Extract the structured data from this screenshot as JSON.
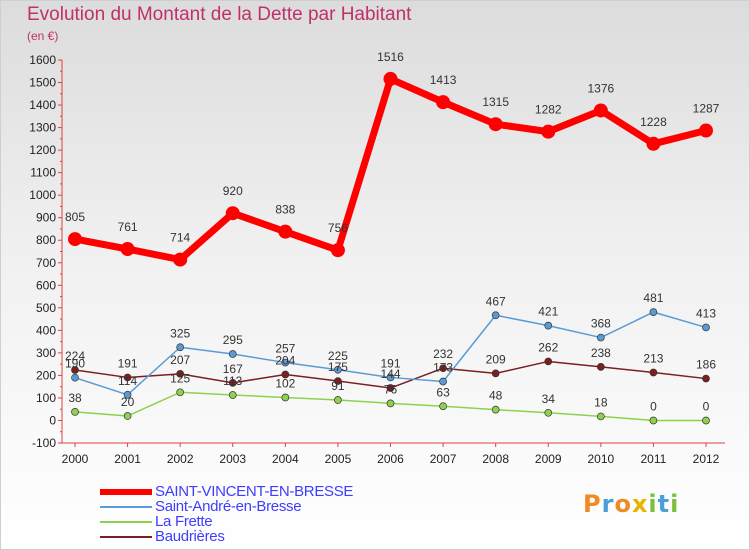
{
  "header": {
    "title": "Evolution du Montant de la Dette par Habitant",
    "subtitle": "(en €)"
  },
  "brand": {
    "logo_text": "Proxiti"
  },
  "chart_data": {
    "type": "line",
    "title": "Evolution du Montant de la Dette par Habitant",
    "subtitle": "(en €)",
    "xlabel": "",
    "ylabel": "",
    "x": [
      2000,
      2001,
      2002,
      2003,
      2004,
      2005,
      2006,
      2007,
      2008,
      2009,
      2010,
      2011,
      2012
    ],
    "ylim": [
      -100,
      1600
    ],
    "yticks": [
      -100,
      0,
      100,
      200,
      300,
      400,
      500,
      600,
      700,
      800,
      900,
      1000,
      1100,
      1200,
      1300,
      1400,
      1500,
      1600
    ],
    "grid": false,
    "legend_position": "bottom-left",
    "series": [
      {
        "name": "SAINT-VINCENT-EN-BRESSE",
        "color": "#ff0000",
        "emphasis": true,
        "values": [
          805,
          761,
          714,
          920,
          838,
          756,
          1516,
          1413,
          1315,
          1282,
          1376,
          1228,
          1287
        ]
      },
      {
        "name": "Saint-André-en-Bresse",
        "color": "#5b9bd5",
        "emphasis": false,
        "values": [
          190,
          114,
          325,
          295,
          257,
          225,
          191,
          173,
          467,
          421,
          368,
          481,
          413
        ]
      },
      {
        "name": "La Frette",
        "color": "#8fd14f",
        "emphasis": false,
        "values": [
          38,
          20,
          125,
          113,
          102,
          91,
          76,
          63,
          48,
          34,
          18,
          0,
          0
        ]
      },
      {
        "name": "Baudrières",
        "color": "#7b1f1f",
        "emphasis": false,
        "values": [
          224,
          191,
          207,
          167,
          204,
          175,
          144,
          232,
          209,
          262,
          238,
          213,
          186
        ]
      }
    ],
    "data_labels": {
      "SAINT-VINCENT-EN-BRESSE": [
        "805",
        "761",
        "714",
        "920",
        "838",
        "756",
        "1516",
        "1413",
        "1315",
        "1282",
        "1376",
        "1228",
        "1287"
      ],
      "Saint-André-en-Bresse": [
        "190",
        "114",
        "325",
        "295",
        "257",
        "225",
        "191",
        "173",
        "467",
        "421",
        "368",
        "481",
        "413"
      ],
      "La Frette": [
        "38",
        "20",
        "125",
        "113",
        "102",
        "91",
        "76",
        "63",
        "48",
        "34",
        "18",
        "0",
        "0"
      ],
      "Baudrières": [
        "224",
        "191",
        "207",
        "167",
        "204",
        "175",
        "144",
        "232",
        "209",
        "262",
        "238",
        "213",
        "186"
      ]
    }
  }
}
